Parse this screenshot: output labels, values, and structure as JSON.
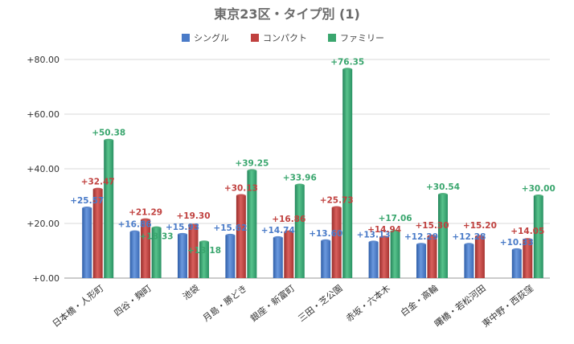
{
  "chart_data": {
    "type": "bar",
    "title": "東京23区・タイプ別 (1)",
    "categories": [
      "日本橋・人形町",
      "四谷・麹町",
      "池袋",
      "月島・勝どき",
      "銀座・新富町",
      "三田・芝公園",
      "赤坂・六本木",
      "白金・高輪",
      "曙橋・若松河田",
      "東中野・西荻窪"
    ],
    "series": [
      {
        "name": "シングル",
        "color": "#4a7bc8",
        "values": [
          25.57,
          16.86,
          15.93,
          15.62,
          14.74,
          13.6,
          13.13,
          12.29,
          12.28,
          10.33
        ],
        "labels": [
          "+25.57",
          "+16.86",
          "+15.93",
          "+15.62",
          "+14.74",
          "+13.60",
          "+13.13",
          "+12.29",
          "+12.28",
          "+10.33"
        ]
      },
      {
        "name": "コンパクト",
        "color": "#c0413f",
        "values": [
          32.47,
          21.29,
          19.3,
          30.13,
          16.86,
          25.73,
          14.94,
          15.3,
          15.2,
          14.05
        ],
        "labels": [
          "+32.47",
          "+21.29",
          "+19.30",
          "+30.13",
          "+16.86",
          "+25.73",
          "+14.94",
          "+15.30",
          "+15.20",
          "+14.05"
        ]
      },
      {
        "name": "ファミリー",
        "color": "#3aa66e",
        "values": [
          50.38,
          18.33,
          13.18,
          39.25,
          33.96,
          76.35,
          17.06,
          30.54,
          null,
          30.0
        ],
        "labels": [
          "+50.38",
          "+18.33",
          "+13.18",
          "+39.25",
          "+33.96",
          "+76.35",
          "+17.06",
          "+30.54",
          "",
          "+30.00"
        ]
      }
    ],
    "ylim": [
      0,
      80
    ],
    "yticks": [
      0,
      20,
      40,
      60,
      80
    ],
    "ytick_labels": [
      "+0.00",
      "+20.00",
      "+40.00",
      "+60.00",
      "+80.00"
    ],
    "grid": true,
    "legend": "top-center"
  }
}
